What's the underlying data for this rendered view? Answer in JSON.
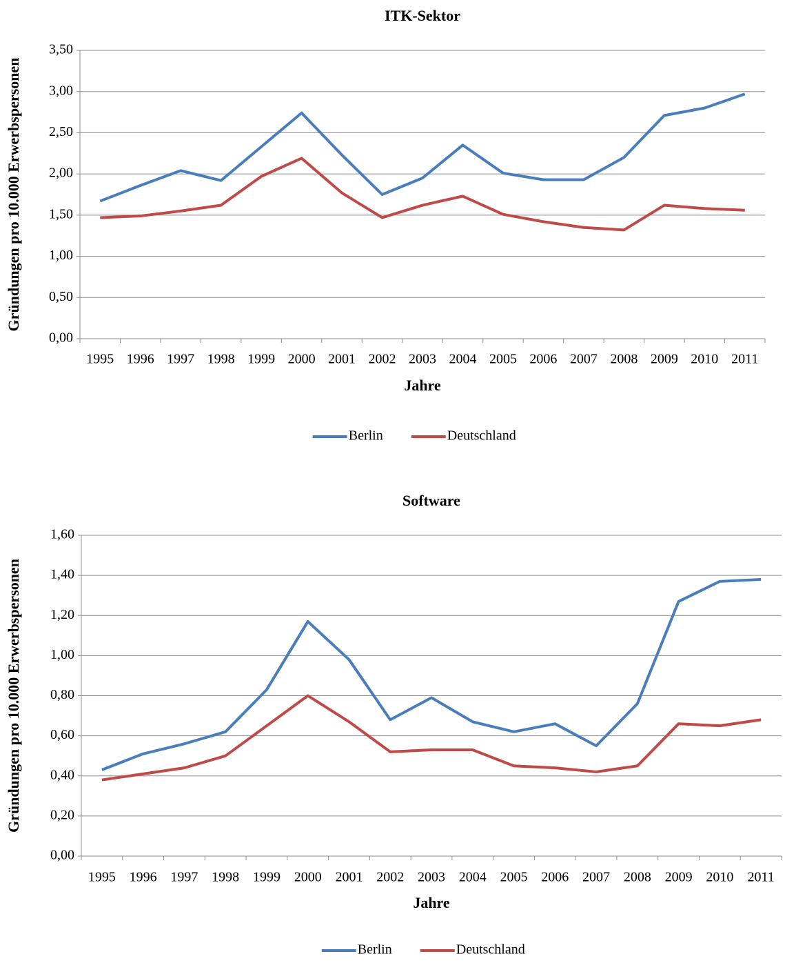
{
  "chart_data": [
    {
      "type": "line",
      "title": "ITK-Sektor",
      "x_label": "Jahre",
      "y_label": "Gründungen  pro 10.000 Erwerbspersonen",
      "categories": [
        "1995",
        "1996",
        "1997",
        "1998",
        "1999",
        "2000",
        "2001",
        "2002",
        "2003",
        "2004",
        "2005",
        "2006",
        "2007",
        "2008",
        "2009",
        "2010",
        "2011"
      ],
      "series": [
        {
          "name": "Berlin",
          "color": "#4a7ebb",
          "values": [
            1.67,
            1.86,
            2.04,
            1.92,
            2.33,
            2.74,
            2.23,
            1.75,
            1.95,
            2.35,
            2.01,
            1.93,
            1.93,
            2.2,
            2.71,
            2.8,
            2.97
          ]
        },
        {
          "name": "Deutschland",
          "color": "#be4b48",
          "values": [
            1.47,
            1.49,
            1.55,
            1.62,
            1.97,
            2.19,
            1.77,
            1.47,
            1.62,
            1.73,
            1.51,
            1.42,
            1.35,
            1.32,
            1.62,
            1.58,
            1.56
          ]
        }
      ],
      "ylim": [
        0,
        3.5
      ],
      "yticks": [
        {
          "value": 0,
          "label": "0,00"
        },
        {
          "value": 0.5,
          "label": "0,50"
        },
        {
          "value": 1,
          "label": "1,00"
        },
        {
          "value": 1.5,
          "label": "1,50"
        },
        {
          "value": 2,
          "label": "2,00"
        },
        {
          "value": 2.5,
          "label": "2,50"
        },
        {
          "value": 3,
          "label": "3,00"
        },
        {
          "value": 3.5,
          "label": "3,50"
        }
      ],
      "grid": true,
      "legend": "bottom"
    },
    {
      "type": "line",
      "title": "Software",
      "x_label": "Jahre",
      "y_label": "Gründungen pro 10.000 Erwerbspersonen",
      "categories": [
        "1995",
        "1996",
        "1997",
        "1998",
        "1999",
        "2000",
        "2001",
        "2002",
        "2003",
        "2004",
        "2005",
        "2006",
        "2007",
        "2008",
        "2009",
        "2010",
        "2011"
      ],
      "series": [
        {
          "name": "Berlin",
          "color": "#4a7ebb",
          "values": [
            0.43,
            0.51,
            0.56,
            0.62,
            0.83,
            1.17,
            0.98,
            0.68,
            0.79,
            0.67,
            0.62,
            0.66,
            0.55,
            0.76,
            1.27,
            1.37,
            1.38
          ]
        },
        {
          "name": "Deutschland",
          "color": "#be4b48",
          "values": [
            0.38,
            0.41,
            0.44,
            0.5,
            0.65,
            0.8,
            0.67,
            0.52,
            0.53,
            0.53,
            0.45,
            0.44,
            0.42,
            0.45,
            0.66,
            0.65,
            0.68
          ]
        }
      ],
      "ylim": [
        0,
        1.6
      ],
      "yticks": [
        {
          "value": 0,
          "label": "0,00"
        },
        {
          "value": 0.2,
          "label": "0,20"
        },
        {
          "value": 0.4,
          "label": "0,40"
        },
        {
          "value": 0.6,
          "label": "0,60"
        },
        {
          "value": 0.8,
          "label": "0,80"
        },
        {
          "value": 1,
          "label": "1,00"
        },
        {
          "value": 1.2,
          "label": "1,20"
        },
        {
          "value": 1.4,
          "label": "1,40"
        },
        {
          "value": 1.6,
          "label": "1,60"
        }
      ],
      "grid": true,
      "legend": "bottom"
    }
  ]
}
